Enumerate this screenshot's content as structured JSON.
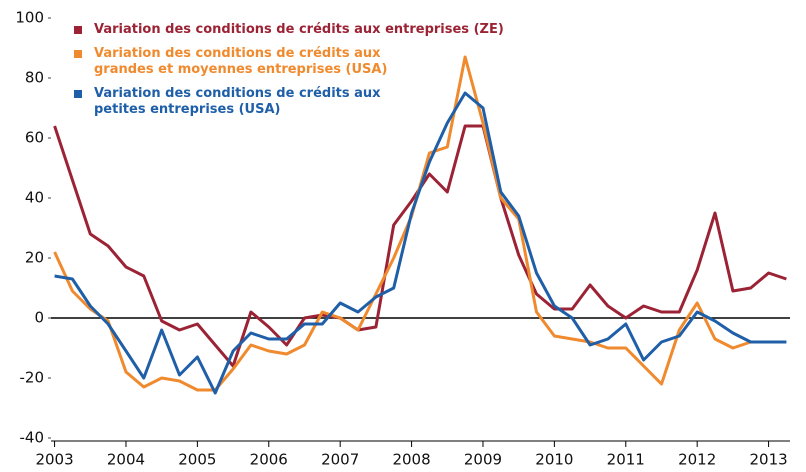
{
  "chart_data": {
    "type": "line",
    "x": [
      2003,
      2003.25,
      2003.5,
      2003.75,
      2004,
      2004.25,
      2004.5,
      2004.75,
      2005,
      2005.25,
      2005.5,
      2005.75,
      2006,
      2006.25,
      2006.5,
      2006.75,
      2007,
      2007.25,
      2007.5,
      2007.75,
      2008,
      2008.25,
      2008.5,
      2008.75,
      2009,
      2009.25,
      2009.5,
      2009.75,
      2010,
      2010.25,
      2010.5,
      2010.75,
      2011,
      2011.25,
      2011.5,
      2011.75,
      2012,
      2012.25,
      2012.5,
      2012.75,
      2013,
      2013.25
    ],
    "series": [
      {
        "name": "Variation des conditions de crédits aux entreprises (ZE)",
        "color": "#9b2335",
        "values": [
          64,
          46,
          28,
          24,
          17,
          14,
          -1,
          -4,
          -2,
          -9,
          -16,
          2,
          -3,
          -9,
          0,
          1,
          0,
          -4,
          -3,
          31,
          39,
          48,
          42,
          64,
          64,
          40,
          21,
          8,
          3,
          3,
          11,
          4,
          0,
          4,
          2,
          2,
          16,
          35,
          9,
          10,
          15,
          13
        ]
      },
      {
        "name": "Variation des conditions de crédits aux grandes et moyennes entreprises (USA)",
        "color": "#f08a2e",
        "values": [
          22,
          9,
          3,
          -1,
          -18,
          -23,
          -20,
          -21,
          -24,
          -24,
          -17,
          -9,
          -11,
          -12,
          -9,
          2,
          0,
          -4,
          8,
          20,
          34,
          55,
          57,
          87,
          65,
          40,
          33,
          2,
          -6,
          -7,
          -8,
          -10,
          -10,
          -16,
          -22,
          -4,
          5,
          -7,
          -10,
          -8,
          -8,
          null
        ]
      },
      {
        "name": "Variation des conditions de crédits aux petites entreprises (USA)",
        "color": "#1f5fa8",
        "values": [
          14,
          13,
          4,
          -2,
          -11,
          -20,
          -4,
          -19,
          -13,
          -25,
          -11,
          -5,
          -7,
          -7,
          -2,
          -2,
          5,
          2,
          7,
          10,
          35,
          52,
          65,
          75,
          70,
          42,
          34,
          15,
          4,
          0,
          -9,
          -7,
          -2,
          -14,
          -8,
          -6,
          2,
          -1,
          -5,
          -8,
          -8,
          -8
        ]
      }
    ],
    "xlim": [
      2002.95,
      2013.3
    ],
    "xticks": [
      2003,
      2004,
      2005,
      2006,
      2007,
      2008,
      2009,
      2010,
      2011,
      2012,
      2013
    ],
    "ylim": [
      -40,
      100
    ],
    "yticks": [
      -40,
      -20,
      0,
      20,
      40,
      60,
      80,
      100
    ]
  }
}
